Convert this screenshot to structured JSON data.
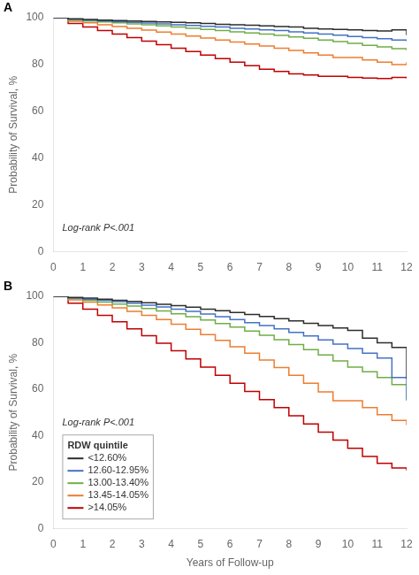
{
  "chart_data": [
    {
      "type": "step",
      "title": "A",
      "ylabel": "Probability of Survival, %",
      "annotations": [
        "Log-rank P<.001"
      ],
      "x": [
        0,
        0.5,
        1,
        1.5,
        2,
        2.5,
        3,
        3.5,
        4,
        4.5,
        5,
        5.5,
        6,
        6.5,
        7,
        7.5,
        8,
        8.5,
        9,
        9.5,
        10,
        10.5,
        11,
        11.5,
        12
      ],
      "series": [
        {
          "color": "#2d2d2d",
          "values": [
            100,
            99.5,
            99.2,
            99.0,
            98.8,
            98.6,
            98.4,
            98.2,
            98.0,
            97.8,
            97.5,
            97.2,
            97.0,
            96.8,
            96.5,
            96.2,
            96.0,
            95.5,
            95.2,
            95.0,
            94.8,
            94.5,
            94.3,
            94.8,
            92.5
          ]
        },
        {
          "color": "#4472c4",
          "values": [
            100,
            99.3,
            99.0,
            98.7,
            98.3,
            98.0,
            97.7,
            97.4,
            97.0,
            96.7,
            96.3,
            96.0,
            95.5,
            95.2,
            94.8,
            94.5,
            94.0,
            93.5,
            93.0,
            92.5,
            92.0,
            91.5,
            91.0,
            90.5,
            90.0
          ]
        },
        {
          "color": "#70ad47",
          "values": [
            100,
            99.0,
            98.6,
            98.2,
            97.8,
            97.4,
            97.0,
            96.5,
            96.0,
            95.5,
            95.0,
            94.5,
            94.0,
            93.5,
            93.0,
            92.4,
            91.8,
            91.2,
            90.5,
            89.8,
            89.0,
            88.2,
            87.5,
            86.8,
            86.0
          ]
        },
        {
          "color": "#ed7d31",
          "values": [
            100,
            98.5,
            97.8,
            97.0,
            96.2,
            95.5,
            94.7,
            93.9,
            93.0,
            92.2,
            91.3,
            90.5,
            89.6,
            88.8,
            87.9,
            87.0,
            86.0,
            85.0,
            84.0,
            83.0,
            83.0,
            82.0,
            81.0,
            80.0,
            81.0
          ]
        },
        {
          "color": "#c00000",
          "values": [
            100,
            97.5,
            96.0,
            94.5,
            93.0,
            91.5,
            90.0,
            88.5,
            87.0,
            85.5,
            84.0,
            82.5,
            81.0,
            79.5,
            78.0,
            77.0,
            76.0,
            75.5,
            75.0,
            75.0,
            74.5,
            74.2,
            74.0,
            74.5,
            74.0
          ]
        }
      ],
      "xlim": [
        0,
        12
      ],
      "xticks": [
        0,
        1,
        2,
        3,
        4,
        5,
        6,
        7,
        8,
        9,
        10,
        11,
        12
      ],
      "ylim": [
        0,
        100
      ],
      "yticks": [
        0,
        20,
        40,
        60,
        80,
        100
      ],
      "grid": false
    },
    {
      "type": "step",
      "title": "B",
      "ylabel": "Probability of Survival, %",
      "xlabel": "Years of Follow-up",
      "annotations": [
        "Log-rank P<.001"
      ],
      "legend": "lower left",
      "legend_title": "RDW quintile",
      "x": [
        0,
        0.5,
        1,
        1.5,
        2,
        2.5,
        3,
        3.5,
        4,
        4.5,
        5,
        5.5,
        6,
        6.5,
        7,
        7.5,
        8,
        8.5,
        9,
        9.5,
        10,
        10.5,
        11,
        11.5,
        12
      ],
      "series": [
        {
          "name": "<12.60%",
          "color": "#2d2d2d",
          "values": [
            100,
            99.5,
            99.2,
            98.8,
            98.3,
            97.8,
            97.2,
            96.6,
            96.0,
            95.3,
            94.5,
            93.8,
            93.0,
            92.2,
            91.3,
            90.4,
            89.4,
            88.4,
            87.4,
            86.4,
            85.3,
            82.0,
            80.0,
            78.0,
            64.5
          ]
        },
        {
          "name": "12.60-12.95%",
          "color": "#4472c4",
          "values": [
            100,
            99.2,
            98.8,
            98.3,
            97.7,
            97.0,
            96.2,
            95.4,
            94.5,
            93.5,
            92.4,
            91.2,
            90.0,
            88.7,
            87.4,
            86.0,
            84.5,
            82.9,
            81.2,
            79.4,
            77.5,
            75.5,
            73.4,
            65.0,
            55.5
          ]
        },
        {
          "name": "13.00-13.40%",
          "color": "#70ad47",
          "values": [
            100,
            99.0,
            98.3,
            97.5,
            96.7,
            95.8,
            94.8,
            93.7,
            92.5,
            91.2,
            89.8,
            88.3,
            86.7,
            85.0,
            83.2,
            81.3,
            79.2,
            77.0,
            74.7,
            72.2,
            69.5,
            67.5,
            65.0,
            62.0,
            55.0
          ]
        },
        {
          "name": "13.45-14.05%",
          "color": "#ed7d31",
          "values": [
            100,
            98.5,
            97.5,
            96.3,
            95.0,
            93.5,
            91.8,
            90.0,
            88.0,
            85.8,
            83.5,
            81.0,
            78.3,
            75.5,
            72.5,
            69.3,
            66.0,
            62.5,
            58.8,
            55.0,
            55.0,
            52.0,
            49.0,
            46.5,
            44.5
          ]
        },
        {
          "name": ">14.05%",
          "color": "#c00000",
          "values": [
            100,
            97.0,
            94.5,
            91.8,
            89.0,
            86.0,
            83.0,
            79.8,
            76.5,
            73.0,
            69.5,
            66.0,
            62.5,
            59.0,
            55.5,
            52.0,
            48.5,
            45.0,
            41.5,
            38.0,
            34.5,
            31.0,
            28.0,
            26.0,
            25.0
          ]
        }
      ],
      "xlim": [
        0,
        12
      ],
      "xticks": [
        0,
        1,
        2,
        3,
        4,
        5,
        6,
        7,
        8,
        9,
        10,
        11,
        12
      ],
      "ylim": [
        0,
        100
      ],
      "yticks": [
        0,
        20,
        40,
        60,
        80,
        100
      ],
      "grid": false
    }
  ]
}
